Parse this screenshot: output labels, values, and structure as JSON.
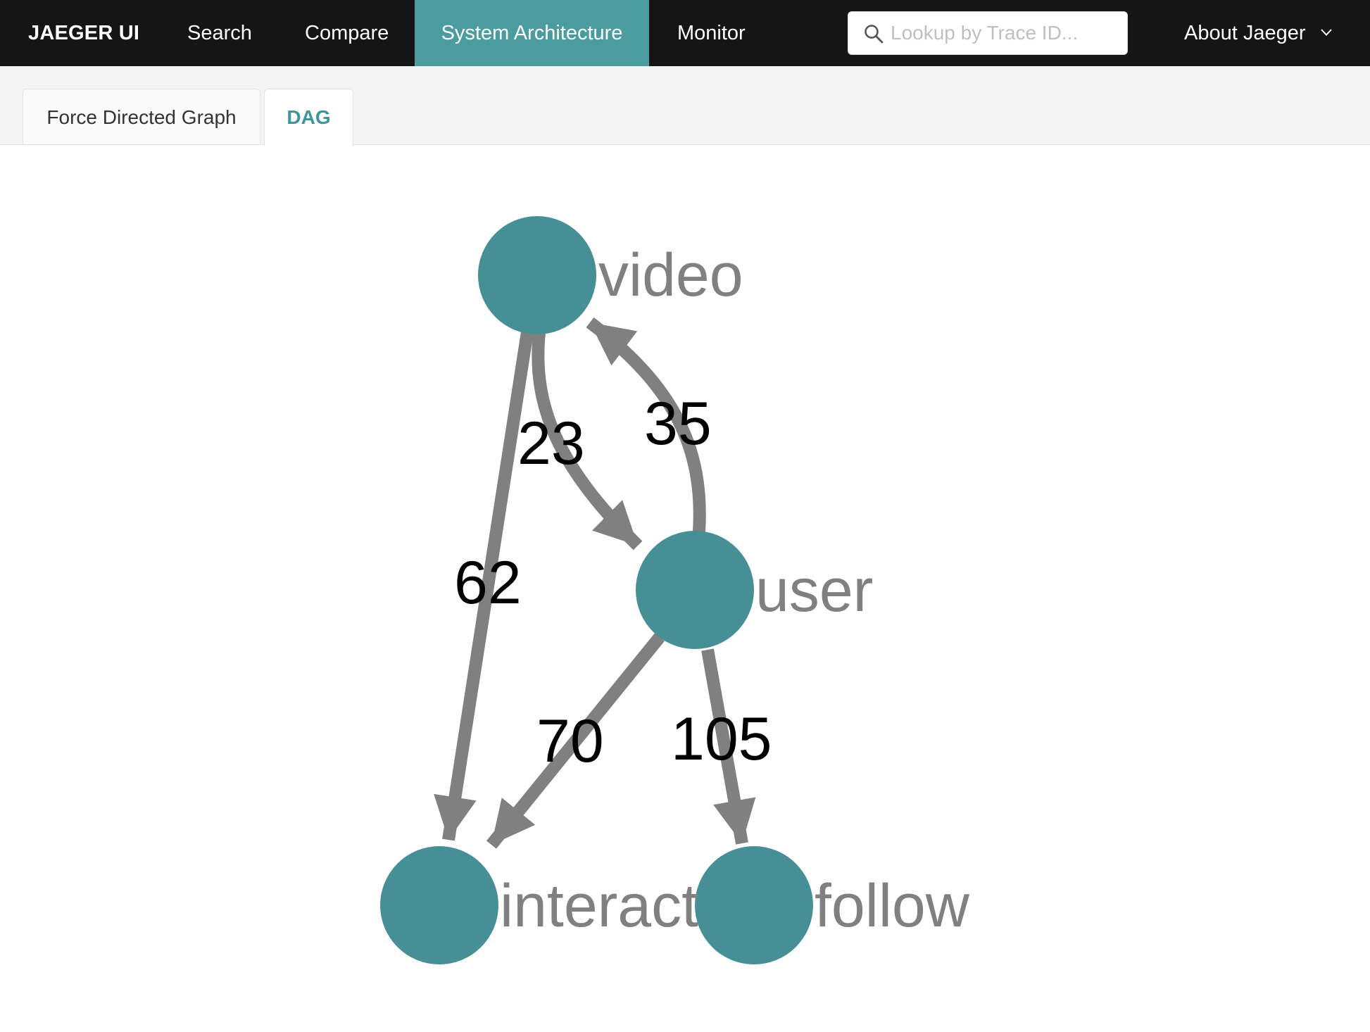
{
  "app": {
    "brand": "JAEGER UI",
    "nav": {
      "search": "Search",
      "compare": "Compare",
      "system_architecture": "System Architecture",
      "monitor": "Monitor"
    },
    "trace_lookup": {
      "placeholder": "Lookup by Trace ID...",
      "value": ""
    },
    "about": "About Jaeger"
  },
  "tabs": {
    "force_directed": "Force Directed Graph",
    "dag": "DAG",
    "active": "DAG"
  },
  "colors": {
    "accent": "#4a9c9e",
    "node": "#478f97",
    "edge": "#808080",
    "navbar": "#151515"
  },
  "graph": {
    "nodes": [
      {
        "id": "video",
        "label": "video"
      },
      {
        "id": "user",
        "label": "user"
      },
      {
        "id": "interact",
        "label": "interact"
      },
      {
        "id": "follow",
        "label": "follow"
      }
    ],
    "edges": [
      {
        "source": "video",
        "target": "user",
        "calls": "23"
      },
      {
        "source": "user",
        "target": "video",
        "calls": "35"
      },
      {
        "source": "video",
        "target": "interact",
        "calls": "62"
      },
      {
        "source": "user",
        "target": "interact",
        "calls": "70"
      },
      {
        "source": "user",
        "target": "follow",
        "calls": "105"
      }
    ]
  }
}
